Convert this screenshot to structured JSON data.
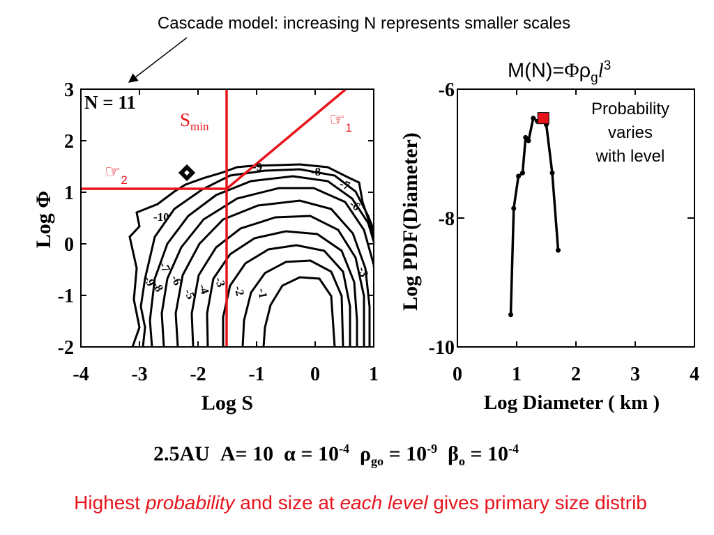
{
  "slide": {
    "header_title": "Cascade model: increasing N represents smaller scales",
    "mass_formula": {
      "prefix": "M(N)=",
      "phi": "Φ",
      "rho": "ρ",
      "rho_sub": "g",
      "ell": "l",
      "exp": "3"
    },
    "probability_note": [
      "Probability",
      "varies",
      "with level"
    ],
    "params": {
      "au": "2.5AU",
      "a_label": "A= 10",
      "alpha": "α = 10",
      "alpha_exp": "-4",
      "rho": "ρ",
      "rho_sub": "go",
      "rho_rest": " = 10",
      "rho_exp": "-9",
      "beta": "β",
      "beta_sub": "o",
      "beta_rest": " = 10",
      "beta_exp": "-4"
    },
    "caption": {
      "p1": "Highest ",
      "p2": "probability",
      "p3": " and size at ",
      "p4": "each level",
      "p5": " gives primary size distrib"
    },
    "colors": {
      "accent": "#e8141c",
      "ink": "#000000"
    }
  },
  "chart_data": [
    {
      "type": "contour",
      "panel_label": "N = 11",
      "xlabel": "Log S",
      "ylabel": "Log Φ",
      "xlim": [
        -4,
        1
      ],
      "ylim": [
        -2,
        3
      ],
      "xticks": [
        "-4",
        "-3",
        "-2",
        "-1",
        "0",
        "1"
      ],
      "yticks": [
        "-2",
        "-1",
        "0",
        "1",
        "2",
        "3"
      ],
      "contour_labels": [
        "-1",
        "-2",
        "-3",
        "-4",
        "-5",
        "-6",
        "-7",
        "-8",
        "-9",
        "-10",
        "-3",
        "-6",
        "-7",
        "-8",
        "-9",
        "-6",
        "-7",
        "-8",
        "-9"
      ],
      "annotations": {
        "smin": {
          "label": "S",
          "sub": "min",
          "x": -1.5
        },
        "line1": {
          "symbol": "☞",
          "sub": "1",
          "points": [
            [
              -1.4,
              1.05
            ],
            [
              0.6,
              3.0
            ]
          ]
        },
        "line2": {
          "symbol": "☞",
          "sub": "2",
          "y": 1.05,
          "x_range": [
            -4,
            -1.5
          ]
        }
      }
    },
    {
      "type": "line",
      "xlabel": "Log Diameter ( km )",
      "ylabel": "Log PDF(Diameter)",
      "xlim": [
        0,
        4
      ],
      "ylim": [
        -10,
        -6
      ],
      "xticks": [
        "0",
        "1",
        "2",
        "3",
        "4"
      ],
      "yticks": [
        "-6",
        "-8",
        "-10"
      ],
      "series": [
        {
          "x": [
            0.9,
            0.95,
            1.03,
            1.1,
            1.15,
            1.2,
            1.28,
            1.35,
            1.4,
            1.45,
            1.5,
            1.6,
            1.7
          ],
          "y": [
            -9.5,
            -7.85,
            -7.35,
            -7.3,
            -6.75,
            -6.8,
            -6.45,
            -6.5,
            -6.5,
            -6.45,
            -6.55,
            -7.3,
            -8.5
          ]
        }
      ],
      "highlight": {
        "x": 1.45,
        "y": -6.45
      }
    }
  ]
}
